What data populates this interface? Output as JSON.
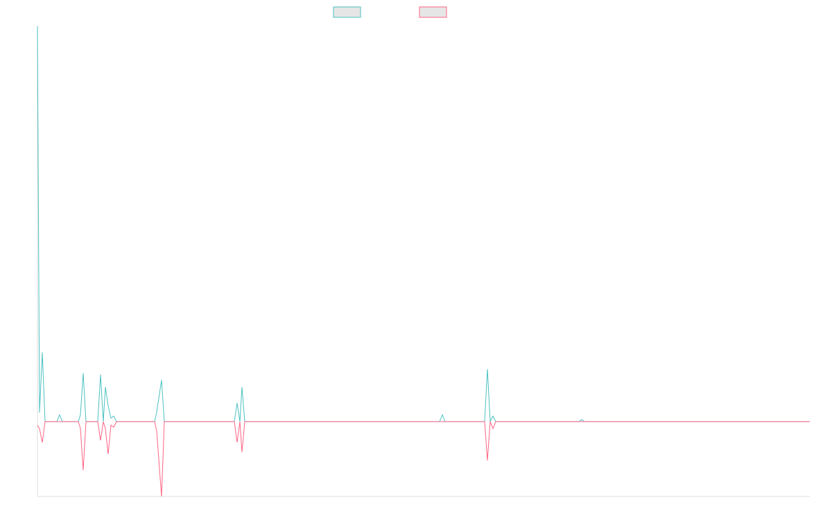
{
  "chart_data": {
    "type": "line",
    "x": [
      54,
      57,
      61,
      65,
      82,
      86,
      90,
      113,
      116,
      120,
      124,
      141,
      145,
      149,
      152,
      156,
      160,
      164,
      168,
      223,
      226,
      233,
      237,
      338,
      342,
      346,
      349,
      353,
      634,
      638,
      642,
      699,
      703,
      707,
      711,
      715,
      835,
      839,
      843,
      1168
    ],
    "xlim": [
      54,
      1168
    ],
    "ylim": [
      -108,
      572
    ],
    "legend": "top",
    "series": [
      {
        "color": "#4bc0c0",
        "values": [
          571,
          13,
          100,
          0,
          0,
          10,
          0,
          0,
          10,
          70,
          0,
          0,
          68,
          0,
          50,
          23,
          5,
          8,
          0,
          0,
          14,
          60,
          0,
          0,
          27,
          0,
          50,
          0,
          0,
          10,
          0,
          0,
          76,
          0,
          8,
          0,
          0,
          3,
          0,
          0
        ]
      },
      {
        "color": "#ff6384",
        "values": [
          -5,
          -10,
          -30,
          0,
          0,
          0,
          0,
          0,
          -10,
          -70,
          0,
          0,
          -27,
          0,
          -10,
          -47,
          -5,
          -8,
          0,
          0,
          -14,
          -108,
          0,
          0,
          -30,
          0,
          -44,
          0,
          0,
          0,
          0,
          0,
          -56,
          0,
          -10,
          0,
          0,
          0,
          0,
          0
        ]
      }
    ]
  }
}
